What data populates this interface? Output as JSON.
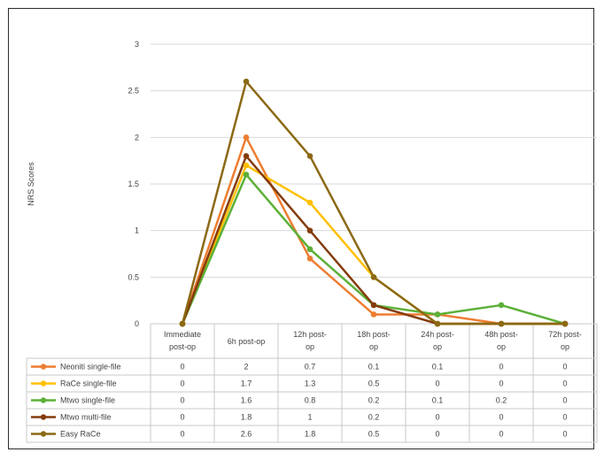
{
  "chart_data": {
    "type": "line",
    "title": "",
    "xlabel": "",
    "ylabel": "NRS Scores",
    "ylim": [
      0,
      3
    ],
    "yticks": [
      "0",
      "0.5",
      "1",
      "1.5",
      "2",
      "2.5",
      "3"
    ],
    "grid": true,
    "legend_placement": "data-table",
    "categories": [
      [
        "Immediate",
        "post-op"
      ],
      [
        "6h post-op"
      ],
      [
        "12h post-",
        "op"
      ],
      [
        "18h post-",
        "op"
      ],
      [
        "24h post-",
        "op"
      ],
      [
        "48h post-",
        "op"
      ],
      [
        "72h post-",
        "op"
      ]
    ],
    "series": [
      {
        "name": "Neoniti single-file",
        "color": "#ed7d31",
        "values": [
          0,
          2,
          0.7,
          0.1,
          0.1,
          0,
          0
        ],
        "labels": [
          "0",
          "2",
          "0.7",
          "0.1",
          "0.1",
          "0",
          "0"
        ]
      },
      {
        "name": "RaCe single-file",
        "color": "#ffc000",
        "values": [
          0,
          1.7,
          1.3,
          0.5,
          0,
          0,
          0
        ],
        "labels": [
          "0",
          "1.7",
          "1.3",
          "0.5",
          "0",
          "0",
          "0"
        ]
      },
      {
        "name": "Mtwo single-file",
        "color": "#5cb038",
        "values": [
          0,
          1.6,
          0.8,
          0.2,
          0.1,
          0.2,
          0
        ],
        "labels": [
          "0",
          "1.6",
          "0.8",
          "0.2",
          "0.1",
          "0.2",
          "0"
        ]
      },
      {
        "name": "Mtwo multi-file",
        "color": "#843c0c",
        "values": [
          0,
          1.8,
          1,
          0.2,
          0,
          0,
          0
        ],
        "labels": [
          "0",
          "1.8",
          "1",
          "0.2",
          "0",
          "0",
          "0"
        ]
      },
      {
        "name": "Easy RaCe",
        "color": "#8b6914",
        "values": [
          0,
          2.6,
          1.8,
          0.5,
          0,
          0,
          0
        ],
        "labels": [
          "0",
          "2.6",
          "1.8",
          "0.5",
          "0",
          "0",
          "0"
        ]
      }
    ]
  }
}
